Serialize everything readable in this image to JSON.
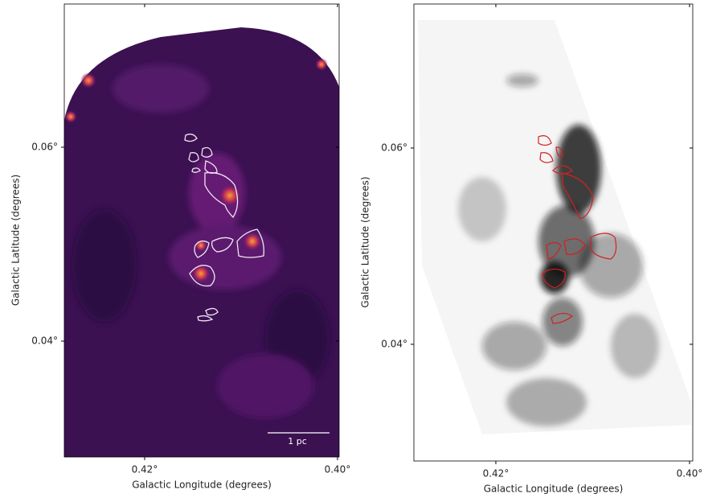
{
  "chart_data": [
    {
      "type": "image",
      "xlabel": "Galactic Longitude (degrees)",
      "ylabel": "Galactic Latitude (degrees)",
      "xlim": [
        0.42833,
        0.39983
      ],
      "ylim": [
        0.02805,
        0.07477
      ],
      "xticks": [
        {
          "value": 0.42,
          "label": "0.42°"
        },
        {
          "value": 0.4,
          "label": "0.40°"
        }
      ],
      "yticks": [
        {
          "value": 0.04,
          "label": "0.04°"
        },
        {
          "value": 0.06,
          "label": "0.06°"
        }
      ],
      "scalebar_label": "1 pc"
    },
    {
      "type": "image",
      "xlabel": "Galactic Longitude (degrees)",
      "ylabel": "Galactic Latitude (degrees)",
      "xlim": [
        0.42846,
        0.39967
      ],
      "ylim": [
        0.02811,
        0.07467
      ],
      "xticks": [
        {
          "value": 0.42,
          "label": "0.42°"
        },
        {
          "value": 0.4,
          "label": "0.40°"
        }
      ],
      "yticks": [
        {
          "value": 0.04,
          "label": "0.04°"
        },
        {
          "value": 0.06,
          "label": "0.06°"
        }
      ]
    }
  ]
}
